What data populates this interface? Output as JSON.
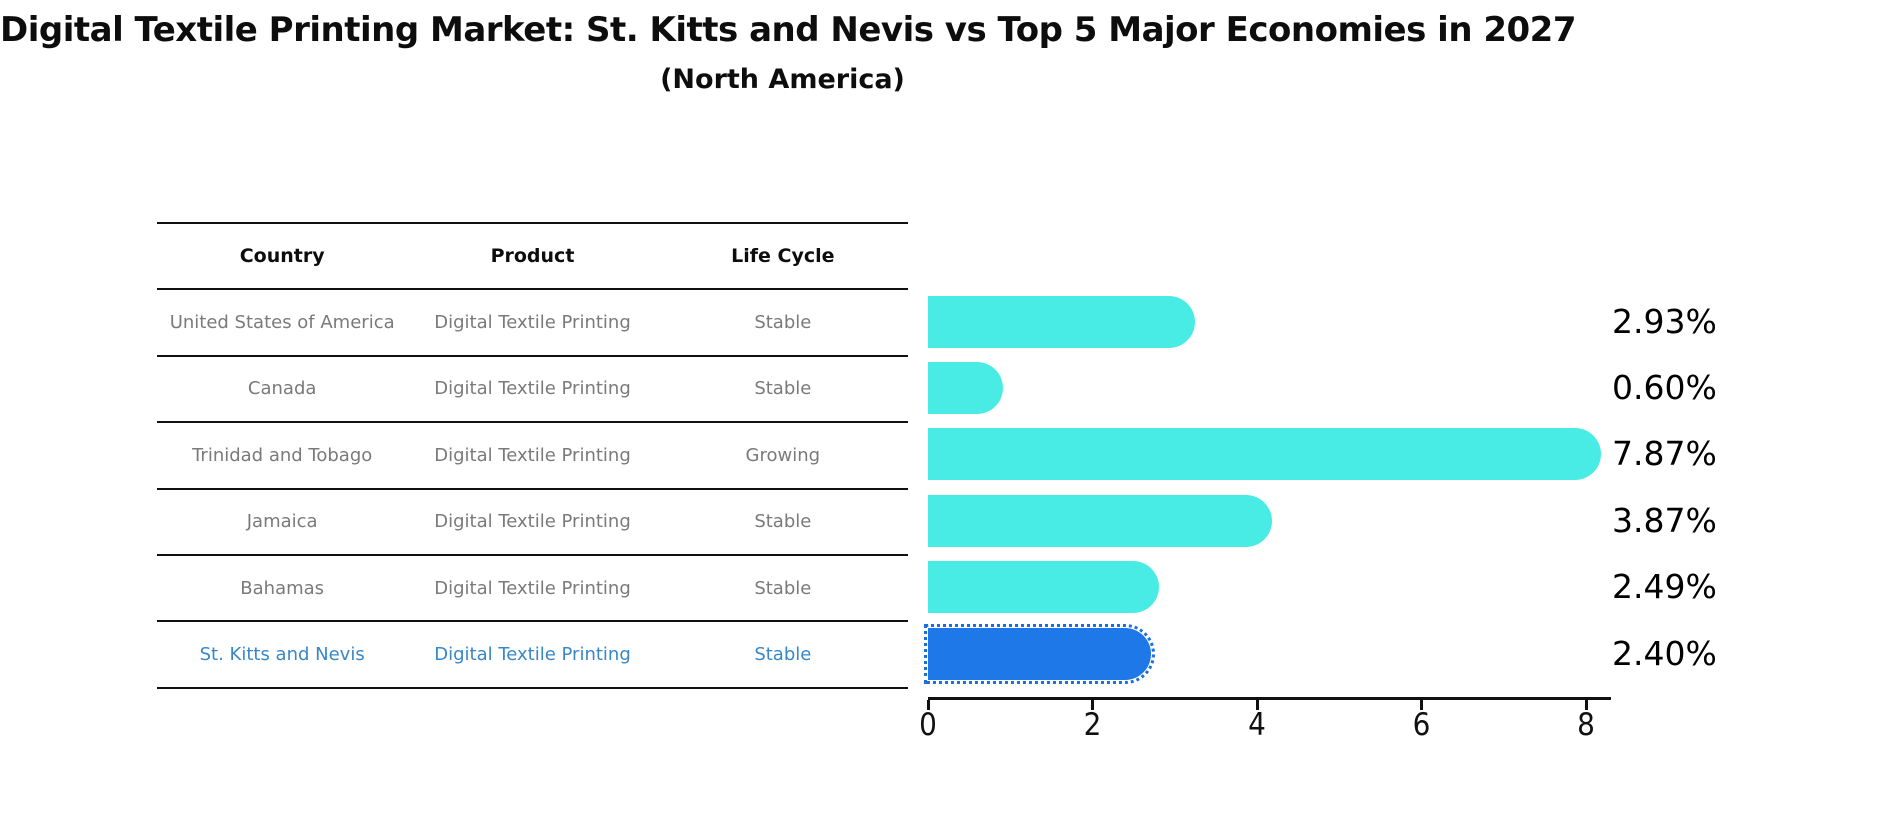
{
  "title": "Digital Textile Printing Market: St. Kitts and Nevis vs Top 5 Major Economies in 2027",
  "subtitle": "(North America)",
  "table": {
    "headers": [
      "Country",
      "Product",
      "Life Cycle"
    ],
    "rows": [
      {
        "country": "United States of America",
        "product": "Digital Textile Printing",
        "life_cycle": "Stable"
      },
      {
        "country": "Canada",
        "product": "Digital Textile Printing",
        "life_cycle": "Stable"
      },
      {
        "country": "Trinidad and Tobago",
        "product": "Digital Textile Printing",
        "life_cycle": "Growing"
      },
      {
        "country": "Jamaica",
        "product": "Digital Textile Printing",
        "life_cycle": "Stable"
      },
      {
        "country": "Bahamas",
        "product": "Digital Textile Printing",
        "life_cycle": "Stable"
      },
      {
        "country": "St. Kitts and Nevis",
        "product": "Digital Textile Printing",
        "life_cycle": "Stable"
      }
    ]
  },
  "chart_data": {
    "type": "bar",
    "orientation": "horizontal",
    "categories": [
      "United States of America",
      "Canada",
      "Trinidad and Tobago",
      "Jamaica",
      "Bahamas",
      "St. Kitts and Nevis"
    ],
    "values": [
      2.93,
      0.6,
      7.87,
      3.87,
      2.49,
      2.4
    ],
    "labels": [
      "2.93%",
      "0.60%",
      "7.87%",
      "3.87%",
      "2.49%",
      "2.40%"
    ],
    "title": "Digital Textile Printing Market: St. Kitts and Nevis vs Top 5 Major Economies in 2027 (North America)",
    "xlabel": "",
    "ylabel": "",
    "xlim": [
      0,
      8.3
    ],
    "xticks": [
      "0",
      "2",
      "4",
      "6",
      "8"
    ],
    "grid": false,
    "legend": false,
    "highlight_index": 5,
    "value_suffix": "%"
  },
  "colors": {
    "bar": "#48ece4",
    "highlight_bar": "#1e78e8",
    "highlight_text": "#3787c9",
    "table_text": "#7a7a7a",
    "axis": "#111111"
  }
}
